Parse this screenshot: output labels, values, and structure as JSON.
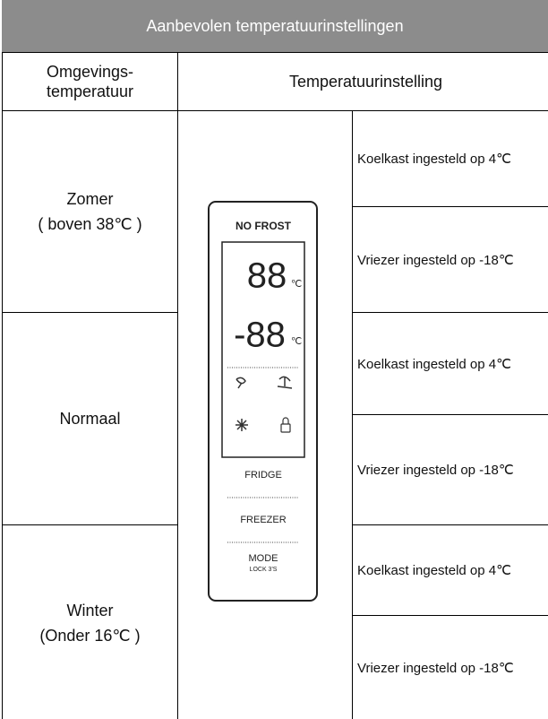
{
  "header": {
    "title": "Aanbevolen temperatuurinstellingen"
  },
  "table": {
    "columns": [
      "Omgevings-\ntemperatuur",
      "Temperatuurinstelling"
    ],
    "rows": [
      {
        "label": "Zomer\n( boven 38℃ )",
        "settings": [
          "Koelkast ingesteld op 4℃",
          "Vriezer ingesteld op -18℃"
        ]
      },
      {
        "label": "Normaal",
        "settings": [
          "Koelkast ingesteld op 4℃",
          "Vriezer ingesteld op -18℃"
        ]
      },
      {
        "label": "Winter\n(Onder 16℃ )",
        "settings": [
          "Koelkast ingesteld op 4℃",
          "Vriezer ingesteld op -18℃"
        ]
      }
    ]
  },
  "panel": {
    "brand": "NO FROST",
    "display_top": "88",
    "display_bottom": "-88",
    "unit": "℃",
    "buttons": [
      "FRIDGE",
      "FREEZER",
      "MODE"
    ],
    "mode_sub": "LOCK 3'S"
  }
}
